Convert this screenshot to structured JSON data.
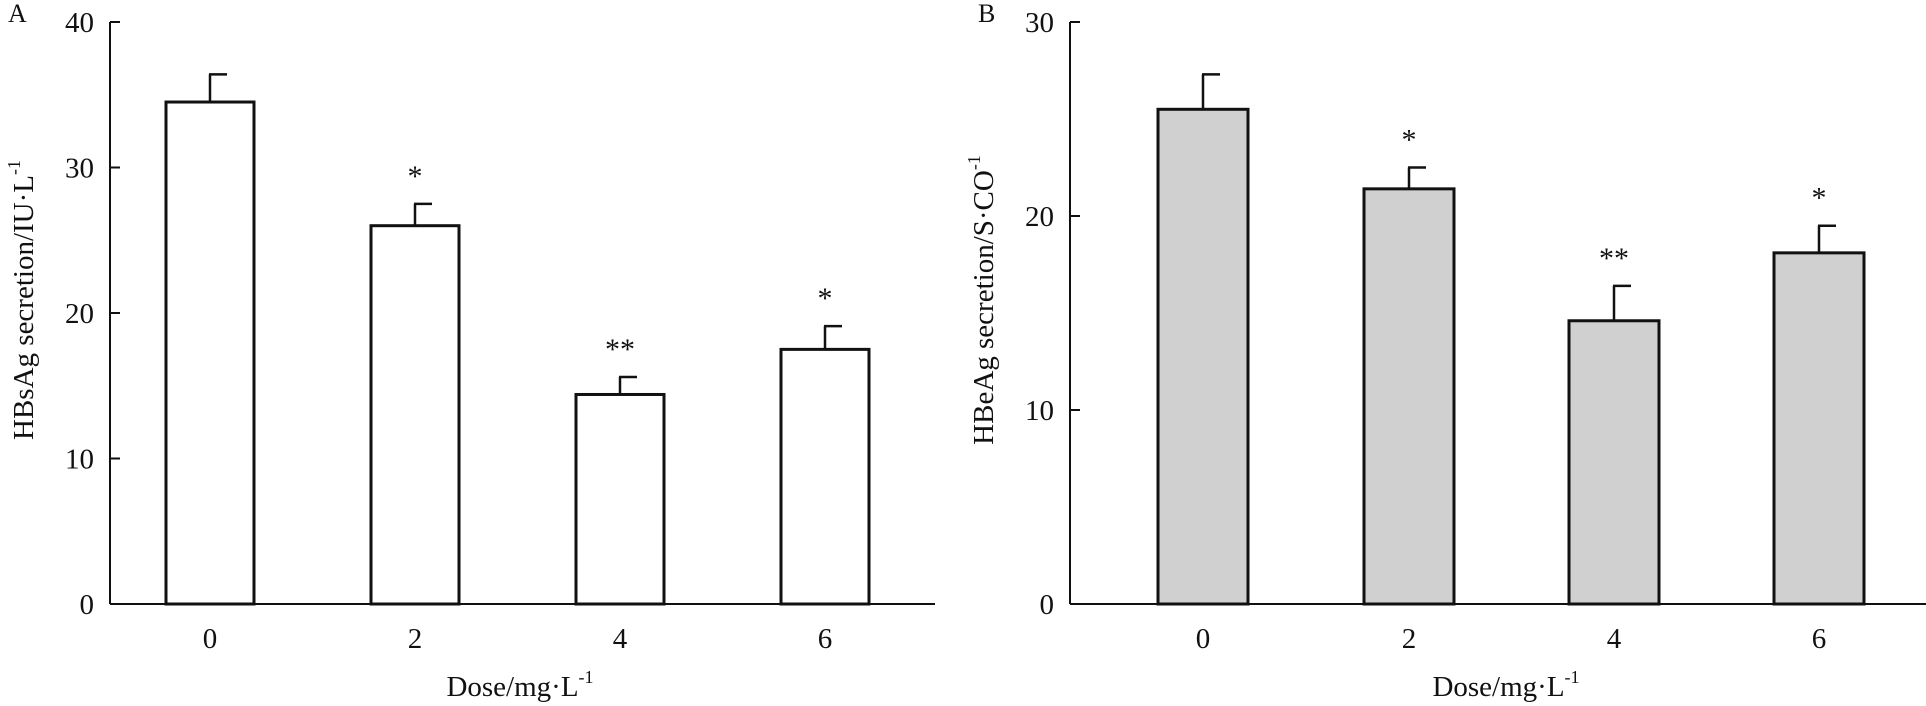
{
  "chart_data": [
    {
      "type": "bar",
      "panel_label": "A",
      "categories": [
        "0",
        "2",
        "4",
        "6"
      ],
      "values": [
        34.5,
        26.0,
        14.4,
        17.5
      ],
      "errors": [
        1.9,
        1.5,
        1.2,
        1.6
      ],
      "significance": [
        "",
        "*",
        "**",
        "*"
      ],
      "ylabel": "HBsAg secretion/IU·L",
      "ylabel_sup": "-1",
      "xlabel": "Dose/mg·L",
      "xlabel_sup": "-1",
      "ylim": [
        0,
        40
      ],
      "yticks": [
        "0",
        "10",
        "20",
        "30",
        "40"
      ],
      "bar_color": "#ffffff",
      "grid": false
    },
    {
      "type": "bar",
      "panel_label": "B",
      "categories": [
        "0",
        "2",
        "4",
        "6"
      ],
      "values": [
        25.5,
        21.4,
        14.6,
        18.1
      ],
      "errors": [
        1.8,
        1.1,
        1.8,
        1.4
      ],
      "significance": [
        "",
        "*",
        "**",
        "*"
      ],
      "ylabel": "HBeAg secretion/S·CO",
      "ylabel_sup": "-1",
      "xlabel": "Dose/mg·L",
      "xlabel_sup": "-1",
      "ylim": [
        0,
        30
      ],
      "yticks": [
        "0",
        "10",
        "20",
        "30"
      ],
      "bar_color": "#d0d0d0",
      "grid": false
    }
  ]
}
